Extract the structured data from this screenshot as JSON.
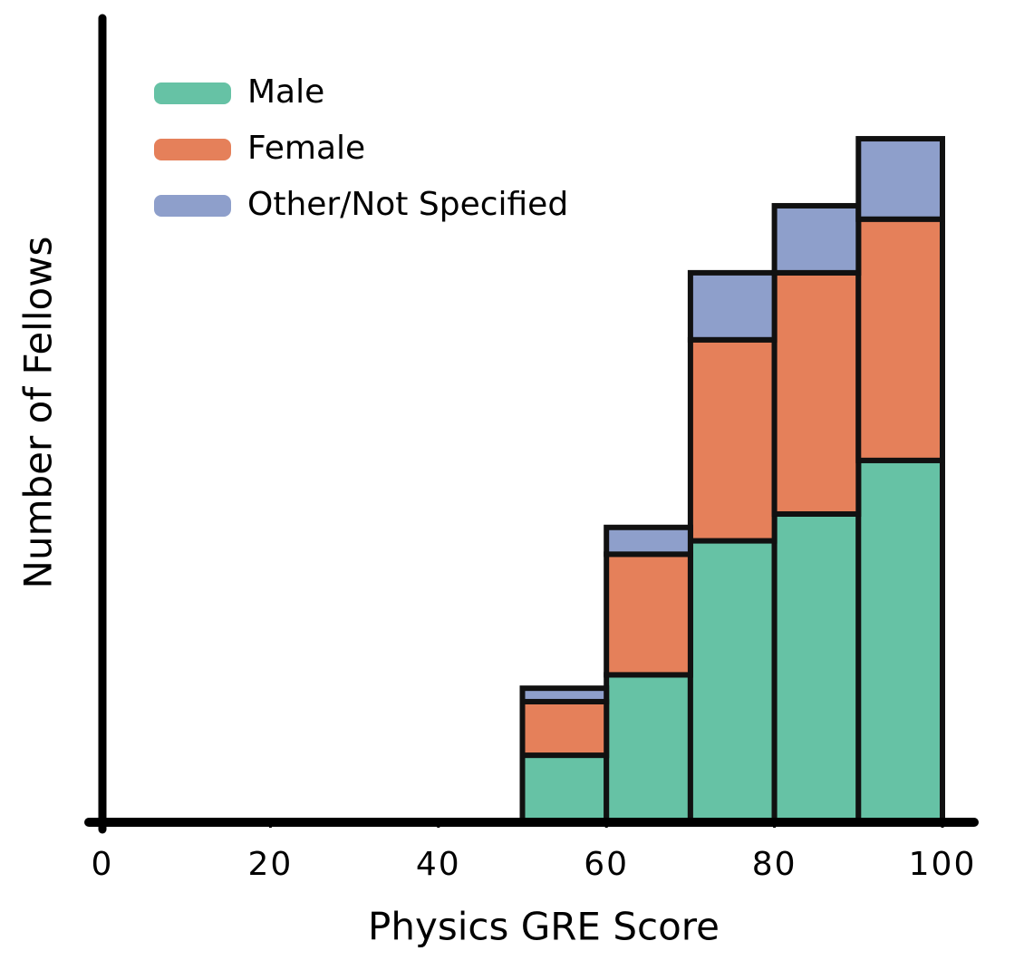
{
  "chart_data": {
    "type": "histogram",
    "x_label": "Physics GRE Score",
    "y_label": "Number of Fellows",
    "bins": [
      50,
      60,
      70,
      80,
      90,
      100
    ],
    "series": [
      {
        "name": "Male",
        "color": "#66c2a5",
        "values": [
          5,
          11,
          21,
          23,
          27
        ]
      },
      {
        "name": "Female",
        "color": "#e5805a",
        "values": [
          4,
          9,
          15,
          18,
          18
        ]
      },
      {
        "name": "Other/Not Specified",
        "color": "#8e9fcb",
        "values": [
          1,
          2,
          5,
          5,
          6
        ]
      }
    ],
    "stacked": true,
    "xlim": [
      0,
      100
    ],
    "xticks": [
      0,
      20,
      40,
      60,
      80,
      100
    ],
    "ylim": [
      0,
      60
    ],
    "legend": "upper left"
  }
}
